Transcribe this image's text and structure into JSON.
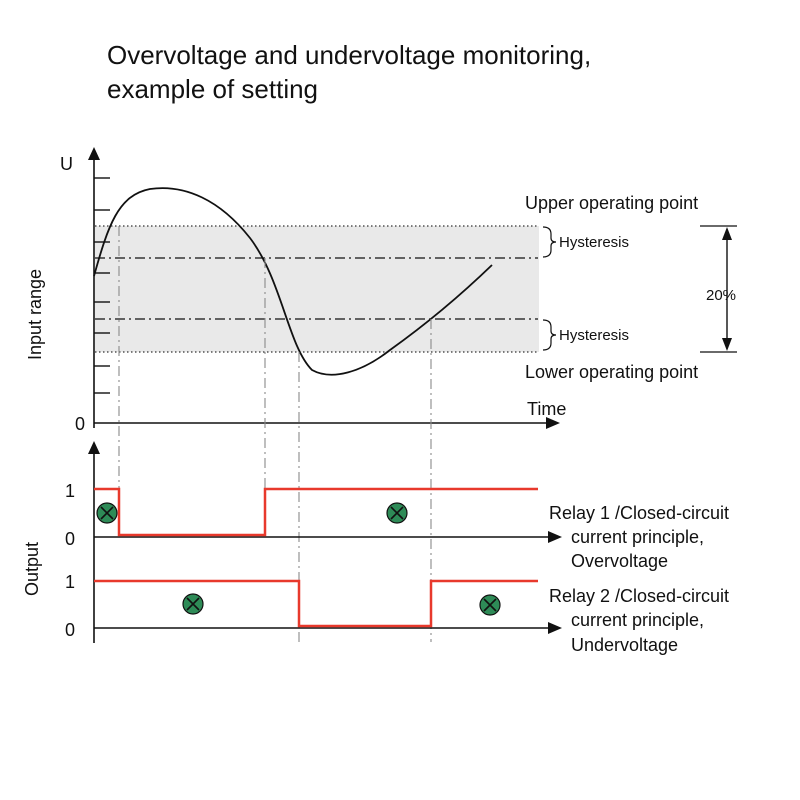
{
  "title": {
    "line1": "Overvoltage and undervoltage monitoring,",
    "line2": "example of setting"
  },
  "upper_chart": {
    "y_axis_label": "U",
    "side_label": "Input range",
    "zero_label": "0",
    "x_axis_label": "Time",
    "upper_point_label": "Upper operating point",
    "lower_point_label": "Lower operating point",
    "hysteresis_upper_label": "Hysteresis",
    "hysteresis_lower_label": "Hysteresis",
    "range_label": "20%",
    "band_color": "#e9e9e9"
  },
  "output_chart": {
    "side_label": "Output",
    "relay1": {
      "one_label": "1",
      "zero_label": "0",
      "desc_line1": "Relay 1 /Closed-circuit",
      "desc_line2": "current principle,",
      "desc_line3": "Overvoltage"
    },
    "relay2": {
      "one_label": "1",
      "zero_label": "0",
      "desc_line1": "Relay 2 /Closed-circuit",
      "desc_line2": "current principle,",
      "desc_line3": "Undervoltage"
    },
    "signal_color": "#e8392c",
    "relay_icon": "relay-energized-icon",
    "relay_icon_color": "#2e8b57"
  }
}
